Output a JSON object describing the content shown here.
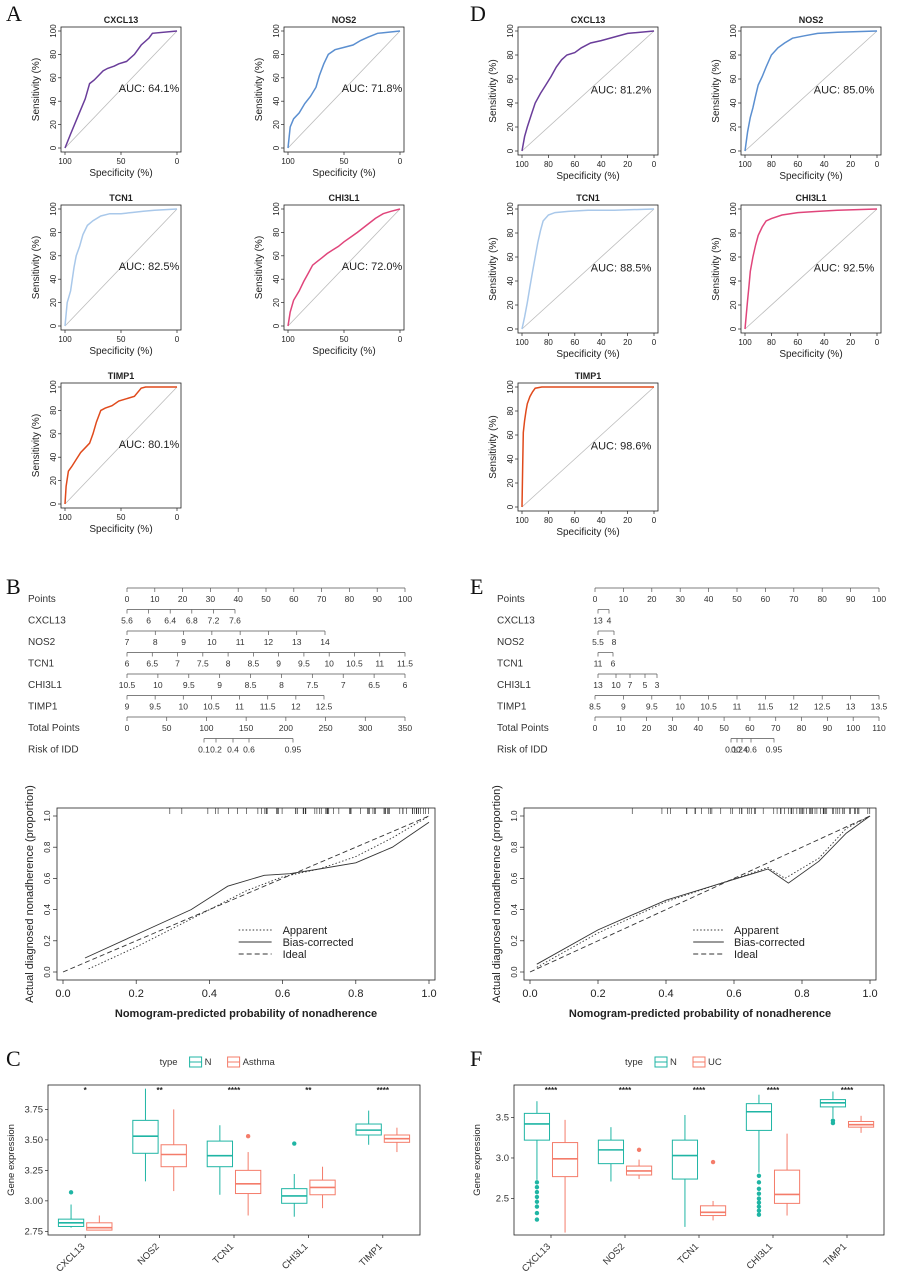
{
  "panel_letters": [
    "A",
    "B",
    "C",
    "D",
    "E",
    "F"
  ],
  "roc_axis": {
    "xlabel": "Specificity (%)",
    "ylabel": "Sensitivity (%)",
    "xticks": [
      "100",
      "50",
      "0"
    ],
    "xticks_fine": [
      "100",
      "80",
      "60",
      "40",
      "20",
      "0"
    ],
    "yticks": [
      "0",
      "20",
      "40",
      "60",
      "80",
      "100"
    ]
  },
  "roc_a": [
    {
      "title": "CXCL13",
      "auc": "AUC: 64.1%",
      "color": "#6a3d9a",
      "curve": [
        [
          100,
          0
        ],
        [
          95,
          12
        ],
        [
          88,
          28
        ],
        [
          82,
          42
        ],
        [
          78,
          55
        ],
        [
          74,
          58
        ],
        [
          70,
          62
        ],
        [
          66,
          66
        ],
        [
          62,
          68
        ],
        [
          56,
          70
        ],
        [
          52,
          72
        ],
        [
          45,
          74
        ],
        [
          38,
          80
        ],
        [
          32,
          88
        ],
        [
          25,
          94
        ],
        [
          22,
          98
        ],
        [
          0,
          100
        ]
      ]
    },
    {
      "title": "NOS2",
      "auc": "AUC: 71.8%",
      "color": "#5b8fd0",
      "curve": [
        [
          100,
          0
        ],
        [
          98,
          18
        ],
        [
          95,
          25
        ],
        [
          90,
          30
        ],
        [
          85,
          38
        ],
        [
          80,
          44
        ],
        [
          75,
          52
        ],
        [
          72,
          62
        ],
        [
          68,
          72
        ],
        [
          64,
          80
        ],
        [
          58,
          84
        ],
        [
          50,
          86
        ],
        [
          42,
          88
        ],
        [
          35,
          92
        ],
        [
          28,
          95
        ],
        [
          20,
          98
        ],
        [
          0,
          100
        ]
      ]
    },
    {
      "title": "TCN1",
      "auc": "AUC: 82.5%",
      "color": "#a9c8ea",
      "curve": [
        [
          100,
          0
        ],
        [
          98,
          20
        ],
        [
          95,
          30
        ],
        [
          92,
          50
        ],
        [
          90,
          60
        ],
        [
          87,
          68
        ],
        [
          84,
          78
        ],
        [
          80,
          86
        ],
        [
          75,
          90
        ],
        [
          68,
          94
        ],
        [
          60,
          96
        ],
        [
          50,
          96
        ],
        [
          40,
          97
        ],
        [
          30,
          98
        ],
        [
          20,
          99
        ],
        [
          0,
          100
        ]
      ]
    },
    {
      "title": "CHI3L1",
      "auc": "AUC: 72.0%",
      "color": "#e0457b",
      "curve": [
        [
          100,
          0
        ],
        [
          98,
          12
        ],
        [
          95,
          22
        ],
        [
          90,
          30
        ],
        [
          86,
          38
        ],
        [
          82,
          45
        ],
        [
          78,
          52
        ],
        [
          74,
          55
        ],
        [
          70,
          58
        ],
        [
          65,
          62
        ],
        [
          60,
          65
        ],
        [
          55,
          68
        ],
        [
          50,
          72
        ],
        [
          44,
          76
        ],
        [
          38,
          80
        ],
        [
          30,
          86
        ],
        [
          22,
          92
        ],
        [
          15,
          96
        ],
        [
          8,
          98
        ],
        [
          0,
          100
        ]
      ]
    },
    {
      "title": "TIMP1",
      "auc": "AUC: 80.1%",
      "color": "#e04a1c",
      "curve": [
        [
          100,
          0
        ],
        [
          99,
          15
        ],
        [
          97,
          28
        ],
        [
          94,
          32
        ],
        [
          90,
          38
        ],
        [
          86,
          44
        ],
        [
          82,
          48
        ],
        [
          78,
          52
        ],
        [
          75,
          60
        ],
        [
          72,
          70
        ],
        [
          68,
          80
        ],
        [
          64,
          82
        ],
        [
          58,
          84
        ],
        [
          52,
          88
        ],
        [
          45,
          90
        ],
        [
          38,
          92
        ],
        [
          32,
          99
        ],
        [
          28,
          100
        ],
        [
          0,
          100
        ]
      ]
    }
  ],
  "roc_d": [
    {
      "title": "CXCL13",
      "auc": "AUC: 81.2%",
      "color": "#6a3d9a",
      "curve": [
        [
          100,
          0
        ],
        [
          98,
          12
        ],
        [
          96,
          20
        ],
        [
          93,
          30
        ],
        [
          90,
          40
        ],
        [
          86,
          48
        ],
        [
          82,
          55
        ],
        [
          78,
          62
        ],
        [
          74,
          70
        ],
        [
          70,
          76
        ],
        [
          66,
          80
        ],
        [
          60,
          82
        ],
        [
          55,
          86
        ],
        [
          48,
          90
        ],
        [
          40,
          92
        ],
        [
          30,
          95
        ],
        [
          20,
          98
        ],
        [
          0,
          100
        ]
      ]
    },
    {
      "title": "NOS2",
      "auc": "AUC: 85.0%",
      "color": "#5b8fd0",
      "curve": [
        [
          100,
          0
        ],
        [
          98,
          16
        ],
        [
          96,
          28
        ],
        [
          94,
          36
        ],
        [
          92,
          46
        ],
        [
          90,
          55
        ],
        [
          87,
          62
        ],
        [
          84,
          70
        ],
        [
          80,
          80
        ],
        [
          75,
          86
        ],
        [
          70,
          90
        ],
        [
          64,
          94
        ],
        [
          55,
          96
        ],
        [
          45,
          98
        ],
        [
          30,
          99
        ],
        [
          0,
          100
        ]
      ]
    },
    {
      "title": "TCN1",
      "auc": "AUC: 88.5%",
      "color": "#a9c8ea",
      "curve": [
        [
          100,
          0
        ],
        [
          98,
          10
        ],
        [
          96,
          22
        ],
        [
          94,
          35
        ],
        [
          92,
          48
        ],
        [
          90,
          60
        ],
        [
          88,
          72
        ],
        [
          86,
          82
        ],
        [
          84,
          90
        ],
        [
          80,
          95
        ],
        [
          75,
          97
        ],
        [
          65,
          98
        ],
        [
          50,
          99
        ],
        [
          30,
          99
        ],
        [
          0,
          100
        ]
      ]
    },
    {
      "title": "CHI3L1",
      "auc": "AUC: 92.5%",
      "color": "#e0457b",
      "curve": [
        [
          100,
          0
        ],
        [
          99,
          12
        ],
        [
          98,
          24
        ],
        [
          97,
          36
        ],
        [
          96,
          48
        ],
        [
          94,
          60
        ],
        [
          92,
          70
        ],
        [
          90,
          78
        ],
        [
          87,
          85
        ],
        [
          84,
          90
        ],
        [
          80,
          92
        ],
        [
          72,
          95
        ],
        [
          60,
          97
        ],
        [
          45,
          98
        ],
        [
          30,
          99
        ],
        [
          0,
          100
        ]
      ]
    },
    {
      "title": "TIMP1",
      "auc": "AUC: 98.6%",
      "color": "#e04a1c",
      "curve": [
        [
          100,
          0
        ],
        [
          99.5,
          35
        ],
        [
          99,
          62
        ],
        [
          98,
          72
        ],
        [
          97,
          80
        ],
        [
          96,
          86
        ],
        [
          94,
          92
        ],
        [
          92,
          96
        ],
        [
          90,
          99
        ],
        [
          85,
          100
        ],
        [
          0,
          100
        ]
      ]
    }
  ],
  "nomo_b": {
    "rows": [
      {
        "label": "Points",
        "ticks": [
          "0",
          "10",
          "20",
          "30",
          "40",
          "50",
          "60",
          "70",
          "80",
          "90",
          "100"
        ]
      },
      {
        "label": "CXCL13",
        "ticks": [
          "5.6",
          "6",
          "6.4",
          "6.8",
          "7.2",
          "7.6"
        ]
      },
      {
        "label": "NOS2",
        "ticks": [
          "7",
          "8",
          "9",
          "10",
          "11",
          "12",
          "13",
          "14"
        ]
      },
      {
        "label": "TCN1",
        "ticks": [
          "6",
          "6.5",
          "7",
          "7.5",
          "8",
          "8.5",
          "9",
          "9.5",
          "10",
          "10.5",
          "11",
          "11.5"
        ]
      },
      {
        "label": "CHI3L1",
        "ticks": [
          "10.5",
          "10",
          "9.5",
          "9",
          "8.5",
          "8",
          "7.5",
          "7",
          "6.5",
          "6"
        ]
      },
      {
        "label": "TIMP1",
        "ticks": [
          "9",
          "9.5",
          "10",
          "10.5",
          "11",
          "11.5",
          "12",
          "12.5"
        ]
      },
      {
        "label": "Total Points",
        "ticks": [
          "0",
          "50",
          "100",
          "150",
          "200",
          "250",
          "300",
          "350"
        ]
      },
      {
        "label": "Risk of IDD",
        "ticks": [
          "0.1",
          "0.2",
          "0.4",
          "0.6",
          "0.95"
        ]
      }
    ]
  },
  "nomo_e": {
    "rows": [
      {
        "label": "Points",
        "ticks": [
          "0",
          "10",
          "20",
          "30",
          "40",
          "50",
          "60",
          "70",
          "80",
          "90",
          "100"
        ]
      },
      {
        "label": "CXCL13",
        "ticks": [
          "13",
          "4"
        ]
      },
      {
        "label": "NOS2",
        "ticks": [
          "5.5",
          "8"
        ]
      },
      {
        "label": "TCN1",
        "ticks": [
          "11",
          "6"
        ]
      },
      {
        "label": "CHI3L1",
        "ticks": [
          "13",
          "10",
          "7",
          "5",
          "3"
        ]
      },
      {
        "label": "TIMP1",
        "ticks": [
          "8.5",
          "9",
          "9.5",
          "10",
          "10.5",
          "11",
          "11.5",
          "12",
          "12.5",
          "13",
          "13.5"
        ]
      },
      {
        "label": "Total Points",
        "ticks": [
          "0",
          "10",
          "20",
          "30",
          "40",
          "50",
          "60",
          "70",
          "80",
          "90",
          "100",
          "110"
        ]
      },
      {
        "label": "Risk of IDD",
        "ticks": [
          "0.1",
          "0.2",
          "0.4",
          "0.6",
          "0.95"
        ]
      }
    ]
  },
  "calibration": {
    "xlabel": "Nomogram-predicted probability of nonadherence",
    "ylabel": "Actual diagnosed nonadherence (proportion)",
    "ticks": [
      "0.0",
      "0.2",
      "0.4",
      "0.6",
      "0.8",
      "1.0"
    ],
    "legend": [
      "Apparent",
      "Bias-corrected",
      "Ideal"
    ]
  },
  "chart_data": [
    {
      "type": "box",
      "panel": "C",
      "legend_title": "type",
      "groups": [
        "N",
        "Asthma"
      ],
      "colors": [
        "#1fb5a4",
        "#f47c6a"
      ],
      "categories": [
        "CXCL13",
        "NOS2",
        "TCN1",
        "CHI3L1",
        "TIMP1"
      ],
      "significance": [
        "*",
        "**",
        "****",
        "**",
        "****"
      ],
      "ylabel": "Gene expression",
      "ylim": [
        2.72,
        3.95
      ],
      "yticks": [
        "2.75",
        "3.00",
        "3.25",
        "3.50",
        "3.75"
      ],
      "boxes": [
        [
          {
            "min": 2.78,
            "q1": 2.79,
            "med": 2.82,
            "q3": 2.85,
            "max": 2.97,
            "outliers": [
              3.07
            ]
          },
          {
            "min": 2.76,
            "q1": 2.76,
            "med": 2.78,
            "q3": 2.82,
            "max": 2.88,
            "outliers": []
          }
        ],
        [
          {
            "min": 3.16,
            "q1": 3.39,
            "med": 3.53,
            "q3": 3.66,
            "max": 3.92,
            "outliers": []
          },
          {
            "min": 3.08,
            "q1": 3.28,
            "med": 3.38,
            "q3": 3.46,
            "max": 3.75,
            "outliers": []
          }
        ],
        [
          {
            "min": 3.05,
            "q1": 3.28,
            "med": 3.37,
            "q3": 3.49,
            "max": 3.62,
            "outliers": []
          },
          {
            "min": 2.88,
            "q1": 3.06,
            "med": 3.14,
            "q3": 3.25,
            "max": 3.4,
            "outliers": [
              3.53
            ]
          }
        ],
        [
          {
            "min": 2.87,
            "q1": 2.98,
            "med": 3.04,
            "q3": 3.1,
            "max": 3.22,
            "outliers": [
              3.47
            ]
          },
          {
            "min": 2.94,
            "q1": 3.05,
            "med": 3.11,
            "q3": 3.17,
            "max": 3.28,
            "outliers": []
          }
        ],
        [
          {
            "min": 3.46,
            "q1": 3.54,
            "med": 3.58,
            "q3": 3.63,
            "max": 3.74,
            "outliers": []
          },
          {
            "min": 3.4,
            "q1": 3.48,
            "med": 3.51,
            "q3": 3.54,
            "max": 3.6,
            "outliers": []
          }
        ]
      ]
    },
    {
      "type": "box",
      "panel": "F",
      "legend_title": "type",
      "groups": [
        "N",
        "UC"
      ],
      "colors": [
        "#1fb5a4",
        "#f47c6a"
      ],
      "categories": [
        "CXCL13",
        "NOS2",
        "TCN1",
        "CHI3L1",
        "TIMP1"
      ],
      "significance": [
        "****",
        "****",
        "****",
        "****",
        "****"
      ],
      "ylabel": "Gene expression",
      "ylim": [
        2.05,
        3.9
      ],
      "yticks": [
        "2.5",
        "3.0",
        "3.5"
      ],
      "boxes": [
        [
          {
            "min": 2.73,
            "q1": 3.22,
            "med": 3.42,
            "q3": 3.55,
            "max": 3.7,
            "outliers": [
              2.7,
              2.64,
              2.58,
              2.52,
              2.46,
              2.4,
              2.32,
              2.24
            ]
          },
          {
            "min": 2.08,
            "q1": 2.77,
            "med": 2.99,
            "q3": 3.19,
            "max": 3.47,
            "outliers": []
          }
        ],
        [
          {
            "min": 2.71,
            "q1": 2.93,
            "med": 3.1,
            "q3": 3.22,
            "max": 3.38,
            "outliers": []
          },
          {
            "min": 2.74,
            "q1": 2.79,
            "med": 2.84,
            "q3": 2.9,
            "max": 2.98,
            "outliers": [
              3.1
            ]
          }
        ],
        [
          {
            "min": 2.15,
            "q1": 2.74,
            "med": 3.03,
            "q3": 3.22,
            "max": 3.53,
            "outliers": []
          },
          {
            "min": 2.23,
            "q1": 2.29,
            "med": 2.33,
            "q3": 2.41,
            "max": 2.47,
            "outliers": [
              2.95
            ]
          }
        ],
        [
          {
            "min": 2.82,
            "q1": 3.34,
            "med": 3.57,
            "q3": 3.67,
            "max": 3.78,
            "outliers": [
              2.78,
              2.7,
              2.62,
              2.56,
              2.5,
              2.45,
              2.4,
              2.35,
              2.3
            ]
          },
          {
            "min": 2.29,
            "q1": 2.44,
            "med": 2.55,
            "q3": 2.85,
            "max": 3.3,
            "outliers": []
          }
        ],
        [
          {
            "min": 3.49,
            "q1": 3.63,
            "med": 3.68,
            "q3": 3.72,
            "max": 3.82,
            "outliers": [
              3.46,
              3.43
            ]
          },
          {
            "min": 3.31,
            "q1": 3.38,
            "med": 3.41,
            "q3": 3.45,
            "max": 3.52,
            "outliers": []
          }
        ]
      ]
    }
  ]
}
